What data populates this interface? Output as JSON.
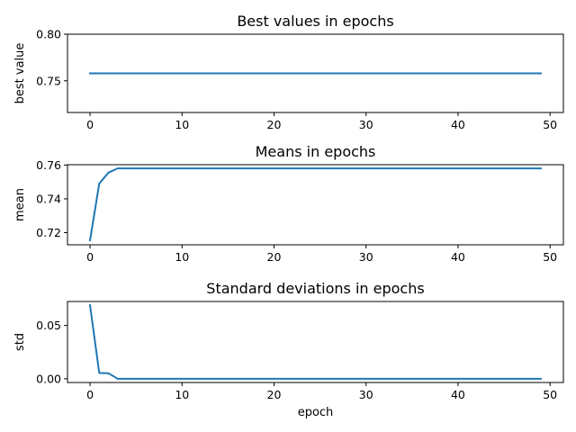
{
  "chart_data": [
    {
      "type": "line",
      "title": "Best values in epochs",
      "xlabel": "",
      "ylabel": "best value",
      "xlim": [
        -2.45,
        51.45
      ],
      "ylim": [
        0.716,
        0.8
      ],
      "xticks": [
        0,
        10,
        20,
        30,
        40,
        50
      ],
      "xtick_labels": [
        "0",
        "10",
        "20",
        "30",
        "40",
        "50"
      ],
      "yticks": [
        0.75,
        0.8
      ],
      "ytick_labels": [
        "0.75",
        "0.80"
      ],
      "grid": false,
      "series": [
        {
          "color": "#1f77b4",
          "x": [
            0,
            1,
            2,
            3,
            4,
            5,
            6,
            7,
            8,
            9,
            10,
            11,
            12,
            13,
            14,
            15,
            16,
            17,
            18,
            19,
            20,
            21,
            22,
            23,
            24,
            25,
            26,
            27,
            28,
            29,
            30,
            31,
            32,
            33,
            34,
            35,
            36,
            37,
            38,
            39,
            40,
            41,
            42,
            43,
            44,
            45,
            46,
            47,
            48,
            49
          ],
          "y": [
            0.758,
            0.758,
            0.758,
            0.758,
            0.758,
            0.758,
            0.758,
            0.758,
            0.758,
            0.758,
            0.758,
            0.758,
            0.758,
            0.758,
            0.758,
            0.758,
            0.758,
            0.758,
            0.758,
            0.758,
            0.758,
            0.758,
            0.758,
            0.758,
            0.758,
            0.758,
            0.758,
            0.758,
            0.758,
            0.758,
            0.758,
            0.758,
            0.758,
            0.758,
            0.758,
            0.758,
            0.758,
            0.758,
            0.758,
            0.758,
            0.758,
            0.758,
            0.758,
            0.758,
            0.758,
            0.758,
            0.758,
            0.758,
            0.758,
            0.758
          ]
        }
      ]
    },
    {
      "type": "line",
      "title": "Means in epochs",
      "xlabel": "",
      "ylabel": "mean",
      "xlim": [
        -2.45,
        51.45
      ],
      "ylim": [
        0.7128,
        0.7602
      ],
      "xticks": [
        0,
        10,
        20,
        30,
        40,
        50
      ],
      "xtick_labels": [
        "0",
        "10",
        "20",
        "30",
        "40",
        "50"
      ],
      "yticks": [
        0.72,
        0.74,
        0.76
      ],
      "ytick_labels": [
        "0.72",
        "0.74",
        "0.76"
      ],
      "grid": false,
      "series": [
        {
          "color": "#1f77b4",
          "x": [
            0,
            1,
            2,
            3,
            4,
            5,
            6,
            7,
            8,
            9,
            10,
            11,
            12,
            13,
            14,
            15,
            16,
            17,
            18,
            19,
            20,
            21,
            22,
            23,
            24,
            25,
            26,
            27,
            28,
            29,
            30,
            31,
            32,
            33,
            34,
            35,
            36,
            37,
            38,
            39,
            40,
            41,
            42,
            43,
            44,
            45,
            46,
            47,
            48,
            49
          ],
          "y": [
            0.7155,
            0.749,
            0.7555,
            0.758,
            0.758,
            0.758,
            0.758,
            0.758,
            0.758,
            0.758,
            0.758,
            0.758,
            0.758,
            0.758,
            0.758,
            0.758,
            0.758,
            0.758,
            0.758,
            0.758,
            0.758,
            0.758,
            0.758,
            0.758,
            0.758,
            0.758,
            0.758,
            0.758,
            0.758,
            0.758,
            0.758,
            0.758,
            0.758,
            0.758,
            0.758,
            0.758,
            0.758,
            0.758,
            0.758,
            0.758,
            0.758,
            0.758,
            0.758,
            0.758,
            0.758,
            0.758,
            0.758,
            0.758,
            0.758,
            0.758
          ]
        }
      ]
    },
    {
      "type": "line",
      "title": "Standard deviations in epochs",
      "xlabel": "epoch",
      "ylabel": "std",
      "xlim": [
        -2.45,
        51.45
      ],
      "ylim": [
        -0.0035,
        0.0725
      ],
      "xticks": [
        0,
        10,
        20,
        30,
        40,
        50
      ],
      "xtick_labels": [
        "0",
        "10",
        "20",
        "30",
        "40",
        "50"
      ],
      "yticks": [
        0.0,
        0.05
      ],
      "ytick_labels": [
        "0.00",
        "0.05"
      ],
      "grid": false,
      "series": [
        {
          "color": "#1f77b4",
          "x": [
            0,
            1,
            2,
            3,
            4,
            5,
            6,
            7,
            8,
            9,
            10,
            11,
            12,
            13,
            14,
            15,
            16,
            17,
            18,
            19,
            20,
            21,
            22,
            23,
            24,
            25,
            26,
            27,
            28,
            29,
            30,
            31,
            32,
            33,
            34,
            35,
            36,
            37,
            38,
            39,
            40,
            41,
            42,
            43,
            44,
            45,
            46,
            47,
            48,
            49
          ],
          "y": [
            0.069,
            0.0055,
            0.0052,
            0.0,
            0.0,
            0.0,
            0.0,
            0.0,
            0.0,
            0.0,
            0.0,
            0.0,
            0.0,
            0.0,
            0.0,
            0.0,
            0.0,
            0.0,
            0.0,
            0.0,
            0.0,
            0.0,
            0.0,
            0.0,
            0.0,
            0.0,
            0.0,
            0.0,
            0.0,
            0.0,
            0.0,
            0.0,
            0.0,
            0.0,
            0.0,
            0.0,
            0.0,
            0.0,
            0.0,
            0.0,
            0.0,
            0.0,
            0.0,
            0.0,
            0.0,
            0.0,
            0.0,
            0.0,
            0.0,
            0.0
          ]
        }
      ]
    }
  ]
}
